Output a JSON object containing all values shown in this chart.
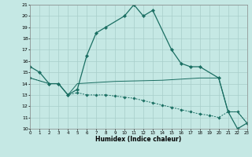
{
  "xlabel": "Humidex (Indice chaleur)",
  "xlim": [
    0,
    23
  ],
  "ylim": [
    10,
    21
  ],
  "yticks": [
    10,
    11,
    12,
    13,
    14,
    15,
    16,
    17,
    18,
    19,
    20,
    21
  ],
  "xticks": [
    0,
    1,
    2,
    3,
    4,
    5,
    6,
    7,
    8,
    9,
    10,
    11,
    12,
    13,
    14,
    15,
    16,
    17,
    18,
    19,
    20,
    21,
    22,
    23
  ],
  "bg_color": "#c5e8e4",
  "line_color": "#1a6e62",
  "grid_color": "#a8ceca",
  "line1_x": [
    0,
    1,
    2,
    3,
    4,
    5,
    6,
    7,
    8,
    10,
    11,
    12,
    13,
    15,
    16,
    17,
    18,
    20,
    21,
    22,
    23
  ],
  "line1_y": [
    15.5,
    15.0,
    14.0,
    14.0,
    13.0,
    13.5,
    16.5,
    18.5,
    19.0,
    20.0,
    21.0,
    20.0,
    20.5,
    17.0,
    15.8,
    15.5,
    15.5,
    14.5,
    11.5,
    10.0,
    10.5
  ],
  "line2_x": [
    0,
    2,
    3,
    4,
    5,
    6,
    7,
    8,
    9,
    10,
    11,
    12,
    13,
    14,
    15,
    16,
    17,
    18,
    19,
    20,
    21,
    22,
    23
  ],
  "line2_y": [
    14.5,
    14.0,
    14.0,
    13.0,
    13.2,
    13.0,
    13.0,
    13.0,
    12.9,
    12.8,
    12.7,
    12.5,
    12.3,
    12.1,
    11.9,
    11.7,
    11.5,
    11.3,
    11.2,
    11.0,
    11.5,
    11.5,
    10.5
  ],
  "line3_x": [
    0,
    2,
    3,
    4,
    5,
    9,
    14,
    18,
    20,
    21,
    22,
    23
  ],
  "line3_y": [
    14.5,
    14.0,
    14.0,
    13.0,
    14.0,
    14.2,
    14.3,
    14.5,
    14.5,
    11.5,
    11.5,
    10.5
  ]
}
